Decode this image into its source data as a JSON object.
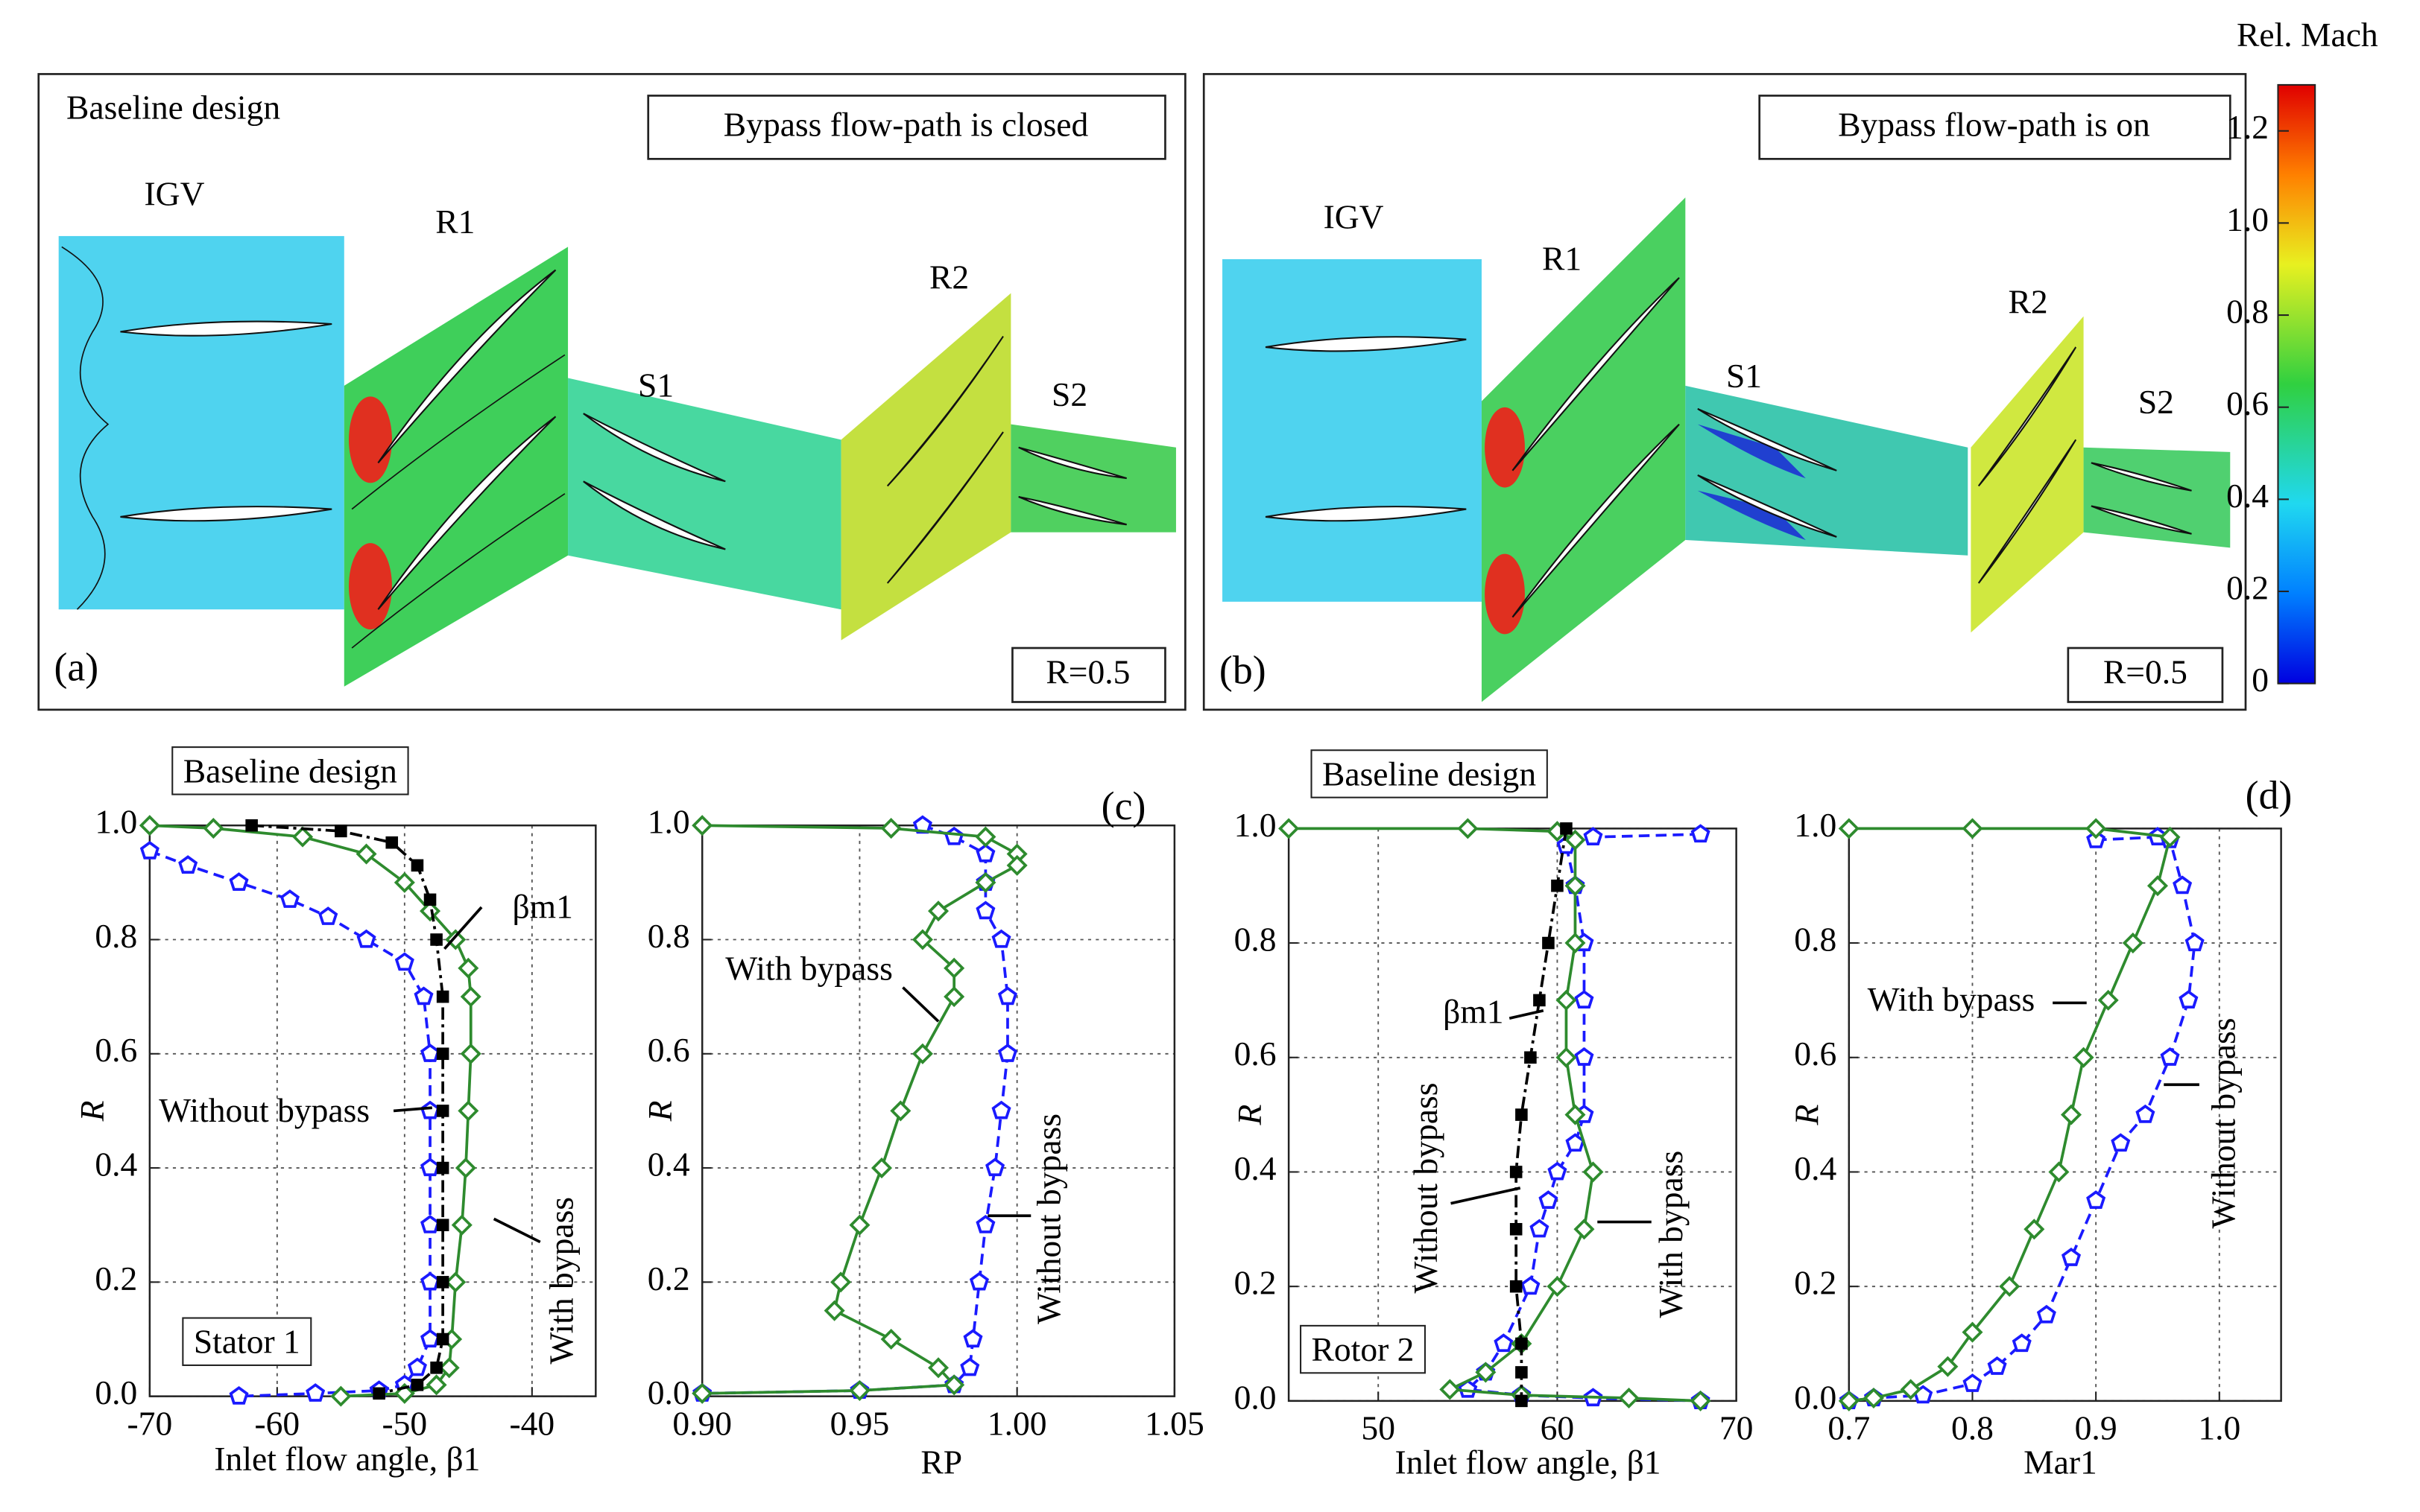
{
  "panels": [
    {
      "label": "(a)",
      "title": "Baseline design",
      "status": "Bypass flow-path is closed",
      "radius": "R=0.5",
      "rows": [
        "IGV",
        "R1",
        "S1",
        "R2",
        "S2"
      ]
    },
    {
      "label": "(b)",
      "status": "Bypass flow-path is on",
      "radius": "R=0.5",
      "rows": [
        "IGV",
        "R1",
        "S1",
        "R2",
        "S2"
      ]
    }
  ],
  "colorbar": {
    "title": "Rel. Mach",
    "lim": [
      0,
      1.3
    ],
    "ticks": [
      0,
      0.2,
      0.4,
      0.6,
      0.8,
      {
        "value": 1,
        "label": "1.0"
      },
      1.2
    ]
  },
  "chart_data": [
    {
      "type": "line",
      "xlabel": "Inlet flow angle, β1",
      "ylabel": "R",
      "annotations": [
        "Baseline design",
        "Stator 1"
      ],
      "xlim": [
        -70,
        -35
      ],
      "xticks": [
        -70,
        -60,
        -50,
        -40
      ],
      "ylim": [
        0,
        1
      ],
      "yticks": [
        {
          "value": 0,
          "label": "0.0"
        },
        0.2,
        0.4,
        0.6,
        0.8,
        {
          "value": 1,
          "label": "1.0"
        }
      ],
      "grid": true,
      "series": [
        {
          "name": "Without bypass",
          "color": "#1a1aff",
          "marker": "pentagon",
          "x": [
            -70,
            -67,
            -63,
            -59,
            -56,
            -53,
            -50,
            -48.5,
            -48,
            -48,
            -48,
            -48,
            -48,
            -48,
            -49,
            -50,
            -52,
            -57,
            -63
          ],
          "values": [
            0.955,
            0.93,
            0.9,
            0.87,
            0.84,
            0.8,
            0.76,
            0.7,
            0.6,
            0.5,
            0.4,
            0.3,
            0.2,
            0.1,
            0.05,
            0.02,
            0.01,
            0.005,
            0
          ]
        },
        {
          "name": "With bypass",
          "color": "#2e8b2e",
          "marker": "diamond",
          "x": [
            -70,
            -65,
            -58,
            -53,
            -50,
            -48,
            -46,
            -45,
            -44.8,
            -44.8,
            -45,
            -45.2,
            -45.5,
            -46,
            -46.3,
            -46.5,
            -47.5,
            -50,
            -55
          ],
          "values": [
            1,
            0.995,
            0.98,
            0.95,
            0.9,
            0.85,
            0.8,
            0.75,
            0.7,
            0.6,
            0.5,
            0.4,
            0.3,
            0.2,
            0.1,
            0.05,
            0.02,
            0.005,
            0
          ]
        },
        {
          "name": "βm1",
          "color": "#000000",
          "marker": "square",
          "x": [
            -62,
            -55,
            -51,
            -49,
            -48,
            -47.5,
            -47,
            -47,
            -47,
            -47,
            -47,
            -47,
            -47,
            -47.5,
            -49,
            -52
          ],
          "values": [
            1,
            0.99,
            0.97,
            0.93,
            0.87,
            0.8,
            0.7,
            0.6,
            0.5,
            0.4,
            0.3,
            0.2,
            0.1,
            0.05,
            0.02,
            0.005
          ]
        }
      ]
    },
    {
      "type": "line",
      "xlabel": "RP",
      "ylabel": "R",
      "annotations": [
        "(c)"
      ],
      "xlim": [
        0.9,
        1.05
      ],
      "xticks": [
        {
          "value": 0.9,
          "label": "0.90"
        },
        0.95,
        {
          "value": 1,
          "label": "1.00"
        },
        1.05
      ],
      "ylim": [
        0,
        1
      ],
      "yticks": [
        {
          "value": 0,
          "label": "0.0"
        },
        0.2,
        0.4,
        0.6,
        0.8,
        {
          "value": 1,
          "label": "1.0"
        }
      ],
      "grid": true,
      "series": [
        {
          "name": "Without bypass",
          "color": "#1a1aff",
          "marker": "pentagon",
          "x": [
            0.97,
            0.98,
            0.99,
            0.99,
            0.99,
            0.995,
            0.997,
            0.997,
            0.995,
            0.993,
            0.99,
            0.988,
            0.986,
            0.985,
            0.98,
            0.95,
            0.9
          ],
          "values": [
            1,
            0.98,
            0.95,
            0.9,
            0.85,
            0.8,
            0.7,
            0.6,
            0.5,
            0.4,
            0.3,
            0.2,
            0.1,
            0.05,
            0.02,
            0.01,
            0.005
          ]
        },
        {
          "name": "With bypass",
          "color": "#2e8b2e",
          "marker": "diamond",
          "x": [
            0.9,
            0.96,
            0.99,
            1,
            1,
            0.99,
            0.975,
            0.97,
            0.98,
            0.98,
            0.97,
            0.963,
            0.957,
            0.95,
            0.944,
            0.942,
            0.96,
            0.975,
            0.98,
            0.95,
            0.9
          ],
          "values": [
            1,
            0.995,
            0.98,
            0.95,
            0.93,
            0.9,
            0.85,
            0.8,
            0.75,
            0.7,
            0.6,
            0.5,
            0.4,
            0.3,
            0.2,
            0.15,
            0.1,
            0.05,
            0.02,
            0.01,
            0.005
          ]
        }
      ]
    },
    {
      "type": "line",
      "xlabel": "Inlet flow angle, β1",
      "ylabel": "R",
      "annotations": [
        "Baseline design",
        "Rotor 2"
      ],
      "xlim": [
        45,
        70
      ],
      "xticks": [
        50,
        60,
        70
      ],
      "ylim": [
        0,
        1
      ],
      "yticks": [
        {
          "value": 0,
          "label": "0.0"
        },
        0.2,
        0.4,
        0.6,
        0.8,
        {
          "value": 1,
          "label": "1.0"
        }
      ],
      "grid": true,
      "series": [
        {
          "name": "Without bypass",
          "color": "#1a1aff",
          "marker": "pentagon",
          "x": [
            68,
            62,
            60.5,
            61,
            61.5,
            61.5,
            61.5,
            61.5,
            61,
            60,
            59.5,
            59,
            58.5,
            57,
            56,
            55,
            58,
            62,
            68
          ],
          "values": [
            0.99,
            0.985,
            0.97,
            0.9,
            0.8,
            0.7,
            0.6,
            0.5,
            0.45,
            0.4,
            0.35,
            0.3,
            0.2,
            0.1,
            0.05,
            0.02,
            0.01,
            0.005,
            0
          ]
        },
        {
          "name": "With bypass",
          "color": "#2e8b2e",
          "marker": "diamond",
          "x": [
            45,
            55,
            60,
            61,
            61,
            61,
            60.5,
            60.5,
            61,
            62,
            61.5,
            60,
            58,
            56,
            54,
            58,
            64,
            68
          ],
          "values": [
            1,
            1,
            0.995,
            0.98,
            0.9,
            0.8,
            0.7,
            0.6,
            0.5,
            0.4,
            0.3,
            0.2,
            0.1,
            0.05,
            0.02,
            0.01,
            0.005,
            0
          ]
        },
        {
          "name": "βm1",
          "color": "#000000",
          "marker": "square",
          "x": [
            60.5,
            60,
            59.5,
            59,
            58.5,
            58,
            57.7,
            57.7,
            57.7,
            58,
            58,
            58
          ],
          "values": [
            1,
            0.9,
            0.8,
            0.7,
            0.6,
            0.5,
            0.4,
            0.3,
            0.2,
            0.1,
            0.05,
            0
          ]
        }
      ]
    },
    {
      "type": "line",
      "xlabel": "Mar1",
      "ylabel": "R",
      "annotations": [
        "(d)"
      ],
      "xlim": [
        0.7,
        1.05
      ],
      "xticks": [
        0.7,
        0.8,
        0.9,
        {
          "value": 1,
          "label": "1.0"
        }
      ],
      "ylim": [
        0,
        1
      ],
      "yticks": [
        {
          "value": 0,
          "label": "0.0"
        },
        0.2,
        0.4,
        0.6,
        0.8,
        {
          "value": 1,
          "label": "1.0"
        }
      ],
      "grid": true,
      "series": [
        {
          "name": "Without bypass",
          "color": "#1a1aff",
          "marker": "pentagon",
          "x": [
            0.9,
            0.95,
            0.96,
            0.97,
            0.98,
            0.975,
            0.96,
            0.94,
            0.92,
            0.9,
            0.88,
            0.86,
            0.84,
            0.82,
            0.8,
            0.76,
            0.72,
            0.7
          ],
          "values": [
            0.98,
            0.985,
            0.98,
            0.9,
            0.8,
            0.7,
            0.6,
            0.5,
            0.45,
            0.35,
            0.25,
            0.15,
            0.1,
            0.06,
            0.03,
            0.01,
            0.005,
            0
          ]
        },
        {
          "name": "With bypass",
          "color": "#2e8b2e",
          "marker": "diamond",
          "x": [
            0.7,
            0.8,
            0.9,
            0.96,
            0.95,
            0.93,
            0.91,
            0.89,
            0.88,
            0.87,
            0.85,
            0.83,
            0.8,
            0.78,
            0.75,
            0.72,
            0.7
          ],
          "values": [
            1,
            1,
            1,
            0.985,
            0.9,
            0.8,
            0.7,
            0.6,
            0.5,
            0.4,
            0.3,
            0.2,
            0.12,
            0.06,
            0.02,
            0.005,
            0
          ]
        }
      ]
    }
  ]
}
